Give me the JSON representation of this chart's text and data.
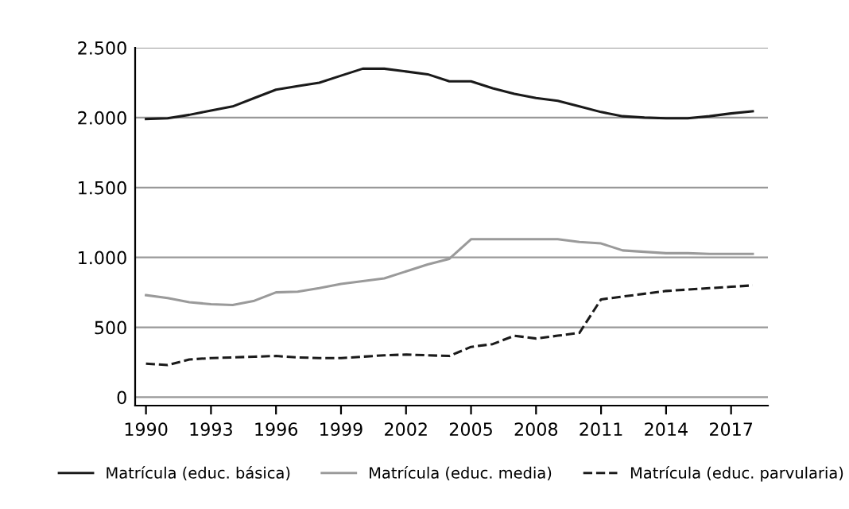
{
  "chart_data": {
    "type": "line",
    "x": [
      1990,
      1991,
      1992,
      1993,
      1994,
      1995,
      1996,
      1997,
      1998,
      1999,
      2000,
      2001,
      2002,
      2003,
      2004,
      2005,
      2006,
      2007,
      2008,
      2009,
      2010,
      2011,
      2012,
      2013,
      2014,
      2015,
      2016,
      2017,
      2018
    ],
    "series": [
      {
        "name": "Matrícula (educ. básica)",
        "color": "#1a1a1a",
        "line_style": "solid",
        "values": [
          1990,
          1995,
          2020,
          2050,
          2080,
          2140,
          2200,
          2225,
          2250,
          2300,
          2350,
          2350,
          2330,
          2310,
          2260,
          2260,
          2210,
          2170,
          2140,
          2120,
          2080,
          2040,
          2010,
          2000,
          1995,
          1995,
          2010,
          2030,
          2045
        ]
      },
      {
        "name": "Matrícula (educ. media)",
        "color": "#9a9a9a",
        "line_style": "solid",
        "values": [
          730,
          710,
          680,
          665,
          660,
          690,
          750,
          755,
          780,
          810,
          830,
          850,
          900,
          950,
          990,
          1130,
          1130,
          1130,
          1130,
          1130,
          1110,
          1100,
          1050,
          1040,
          1030,
          1030,
          1025,
          1025,
          1025
        ]
      },
      {
        "name": "Matrícula (educ. parvularia)",
        "color": "#1a1a1a",
        "line_style": "dashed",
        "values": [
          240,
          230,
          270,
          280,
          285,
          290,
          295,
          285,
          280,
          280,
          290,
          300,
          305,
          300,
          295,
          360,
          380,
          440,
          420,
          440,
          460,
          700,
          720,
          740,
          760,
          770,
          780,
          790,
          800
        ]
      }
    ],
    "xlim": [
      1989.5,
      2018.7
    ],
    "xticks": [
      1990,
      1993,
      1996,
      1999,
      2002,
      2005,
      2008,
      2011,
      2014,
      2017
    ],
    "ylim": [
      -60,
      2500
    ],
    "yticks": [
      0,
      500,
      {
        "value": 1000,
        "label": "1.000"
      },
      {
        "value": 1500,
        "label": "1.500"
      },
      {
        "value": 2000,
        "label": "2.000"
      },
      {
        "value": 2500,
        "label": "2.500"
      }
    ],
    "grid": "y",
    "legend": "bottom",
    "marker": "none"
  }
}
